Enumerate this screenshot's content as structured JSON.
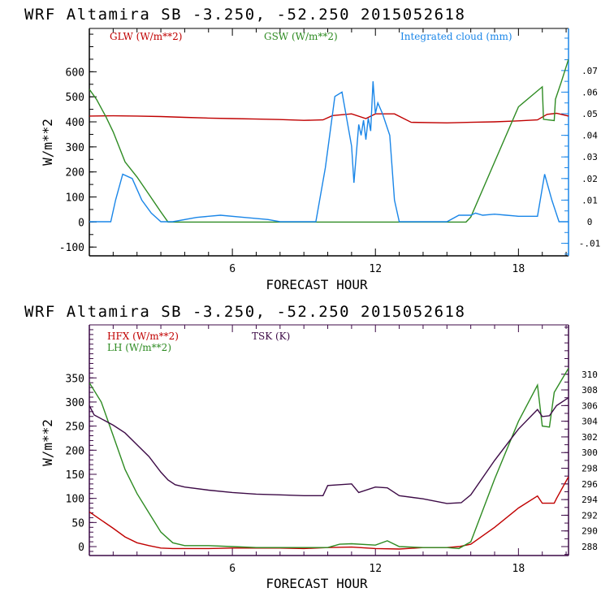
{
  "chart_data": [
    {
      "type": "line",
      "title": "WRF   Altamira   SB  -3.250, -52.250  2015052618",
      "xlabel": "FORECAST HOUR",
      "ylabel": "W/m**2",
      "xlim": [
        0,
        20.1
      ],
      "ylim": [
        -135,
        773
      ],
      "x_ticks": [
        6,
        12,
        18
      ],
      "x_tick_labels": [
        "6",
        "12",
        "18"
      ],
      "y_ticks": [
        -100,
        0,
        100,
        200,
        300,
        400,
        500,
        600
      ],
      "y_tick_labels": [
        "-100",
        "0",
        "100",
        "200",
        "300",
        "400",
        "500",
        "600"
      ],
      "y2lim": [
        -0.0158,
        0.0895
      ],
      "y2_ticks": [
        -0.01,
        0,
        0.01,
        0.02,
        0.03,
        0.04,
        0.05,
        0.06,
        0.07
      ],
      "y2_tick_labels": [
        "-.01",
        "0",
        ".01",
        ".02",
        ".03",
        ".04",
        ".05",
        ".06",
        ".07"
      ],
      "y2_color": "#1a86e8",
      "grid": false,
      "legend_position": "top",
      "series": [
        {
          "name": "GLW (W/m**2)",
          "color": "#c00000",
          "axis": "left",
          "x": [
            0,
            1,
            2,
            3,
            4,
            5,
            6,
            7,
            8,
            9,
            9.8,
            10.2,
            11,
            11.6,
            12,
            12.8,
            13.5,
            15,
            16,
            17,
            18,
            18.8,
            19.2,
            19.6,
            20.1
          ],
          "y": [
            423,
            424,
            423,
            421,
            418,
            415,
            413,
            411,
            409,
            406,
            408,
            425,
            432,
            413,
            432,
            432,
            398,
            396,
            398,
            400,
            404,
            408,
            430,
            434,
            423
          ]
        },
        {
          "name": "GSW (W/m**2)",
          "color": "#2e8b22",
          "axis": "left",
          "x": [
            0,
            0.3,
            0.7,
            1,
            1.5,
            2,
            2.5,
            3,
            3.3,
            3.6,
            4,
            9,
            10,
            12,
            14,
            15.8,
            16,
            17,
            18,
            19,
            19.05,
            19.5,
            19.55,
            19.8,
            20.1
          ],
          "y": [
            530,
            490,
            420,
            360,
            240,
            180,
            110,
            40,
            0,
            0,
            0,
            0,
            0,
            0,
            0,
            0,
            20,
            240,
            460,
            540,
            410,
            405,
            490,
            560,
            650
          ]
        },
        {
          "name": "Integrated cloud (mm)",
          "color": "#1a86e8",
          "axis": "right",
          "x": [
            0,
            0.9,
            1.1,
            1.4,
            1.8,
            2.2,
            2.6,
            3.0,
            3.5,
            4.5,
            5.5,
            6.5,
            7.5,
            8,
            9,
            9.5,
            9.9,
            10.3,
            10.6,
            11.0,
            11.1,
            11.3,
            11.4,
            11.5,
            11.6,
            11.7,
            11.8,
            11.9,
            12.0,
            12.1,
            12.3,
            12.6,
            12.8,
            13.0,
            14,
            15,
            15.5,
            16,
            16.2,
            16.5,
            17,
            17.5,
            18,
            18.8,
            19.1,
            19.4,
            19.7,
            20.1
          ],
          "y": [
            0,
            0,
            0.01,
            0.022,
            0.02,
            0.01,
            0.004,
            0,
            0,
            0.002,
            0.003,
            0.002,
            0.001,
            0,
            0,
            0,
            0.025,
            0.058,
            0.06,
            0.035,
            0.018,
            0.045,
            0.04,
            0.047,
            0.038,
            0.048,
            0.042,
            0.065,
            0.05,
            0.055,
            0.05,
            0.04,
            0.01,
            0,
            0,
            0,
            0.003,
            0.003,
            0.004,
            0.003,
            0.0035,
            0.003,
            0.0025,
            0.0025,
            0.022,
            0.01,
            0,
            0
          ]
        }
      ]
    },
    {
      "type": "line",
      "title": "WRF   Altamira   SB  -3.250, -52.250  2015052618",
      "xlabel": "FORECAST HOUR",
      "ylabel": "W/m**2",
      "xlim": [
        0,
        20.1
      ],
      "ylim": [
        -18.5,
        460
      ],
      "x_ticks": [
        6,
        12,
        18
      ],
      "x_tick_labels": [
        "6",
        "12",
        "18"
      ],
      "y_ticks": [
        0,
        50,
        100,
        150,
        200,
        250,
        300,
        350
      ],
      "y_tick_labels": [
        "0",
        "50",
        "100",
        "150",
        "200",
        "250",
        "300",
        "350"
      ],
      "y2lim": [
        286.86,
        316.3
      ],
      "y2_ticks": [
        288,
        290,
        292,
        294,
        296,
        298,
        300,
        302,
        304,
        306,
        308,
        310
      ],
      "y2_tick_labels": [
        "288",
        "290",
        "292",
        "294",
        "296",
        "298",
        "300",
        "302",
        "304",
        "306",
        "308",
        "310"
      ],
      "y2_color": "#3c0a46",
      "grid": false,
      "legend_position": "top-left",
      "series": [
        {
          "name": "HFX (W/m**2)",
          "color": "#c00000",
          "axis": "left",
          "x": [
            0,
            0.5,
            1,
            1.5,
            2,
            2.5,
            3,
            3.5,
            4,
            5,
            6,
            7,
            8,
            9,
            10,
            11,
            12,
            13,
            14,
            15,
            15.5,
            16,
            17,
            18,
            18.8,
            19.0,
            19.5,
            19.6,
            20.1
          ],
          "y": [
            72,
            55,
            38,
            20,
            8,
            2,
            -3,
            -4,
            -4,
            -4,
            -3,
            -3,
            -3,
            -4,
            -2,
            -1,
            -4,
            -5,
            -2,
            -2,
            0,
            5,
            40,
            80,
            105,
            90,
            90,
            100,
            145
          ]
        },
        {
          "name": "LH (W/m**2)",
          "color": "#2e8b22",
          "axis": "left",
          "x": [
            0,
            0.5,
            1,
            1.5,
            2,
            2.5,
            3,
            3.5,
            4,
            5,
            6,
            7,
            8,
            9,
            10,
            10.5,
            11,
            12,
            12.5,
            13,
            14,
            15,
            15.5,
            16,
            17,
            18,
            18.8,
            19.0,
            19.3,
            19.5,
            20.1
          ],
          "y": [
            340,
            300,
            230,
            160,
            110,
            70,
            30,
            8,
            2,
            2,
            0,
            -2,
            -2,
            -2,
            -2,
            5,
            6,
            3,
            12,
            0,
            -2,
            -2,
            -4,
            10,
            140,
            260,
            335,
            250,
            248,
            320,
            370
          ]
        },
        {
          "name": "TSK (K)",
          "color": "#3c0a46",
          "axis": "right",
          "x": [
            0,
            0.2,
            1,
            1.5,
            2,
            2.5,
            3,
            3.3,
            3.6,
            4,
            5,
            6,
            7,
            8,
            9,
            9.8,
            10,
            11,
            11.3,
            12,
            12.5,
            13,
            14,
            15,
            15.6,
            16,
            17,
            18,
            18.8,
            19.0,
            19.3,
            19.6,
            20.1
          ],
          "y": [
            306,
            304.8,
            303.5,
            302.5,
            301,
            299.5,
            297.5,
            296.5,
            295.9,
            295.6,
            295.2,
            294.9,
            294.7,
            294.6,
            294.5,
            294.5,
            295.8,
            296,
            294.9,
            295.6,
            295.5,
            294.5,
            294.1,
            293.5,
            293.6,
            294.6,
            299,
            303,
            305.5,
            304.6,
            304.7,
            306,
            307
          ]
        }
      ]
    }
  ],
  "panels": [
    {
      "title": "WRF   Altamira   SB  -3.250, -52.250  2015052618",
      "ylabel": "W/m**2",
      "xlabel": "FORECAST HOUR",
      "legend": [
        {
          "label": "GLW (W/m**2)",
          "color": "#c00000"
        },
        {
          "label": "GSW (W/m**2)",
          "color": "#2e8b22"
        },
        {
          "label": "Integrated cloud (mm)",
          "color": "#1a86e8"
        }
      ]
    },
    {
      "title": "WRF   Altamira   SB  -3.250, -52.250  2015052618",
      "ylabel": "W/m**2",
      "xlabel": "FORECAST HOUR",
      "legend": [
        {
          "label": "HFX (W/m**2)",
          "color": "#c00000"
        },
        {
          "label": "LH  (W/m**2)",
          "color": "#2e8b22"
        },
        {
          "label": "TSK (K)",
          "color": "#3c0a46"
        }
      ]
    }
  ]
}
